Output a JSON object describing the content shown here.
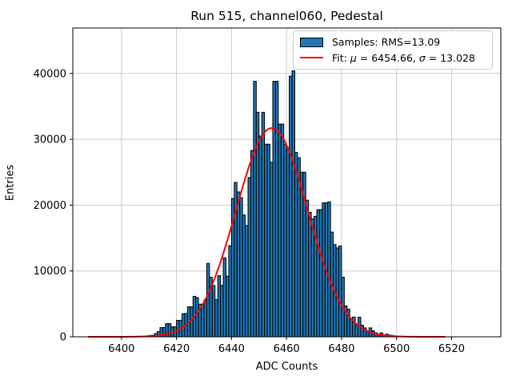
{
  "chart_data": {
    "type": "histogram",
    "title": "Run 515, channel060, Pedestal",
    "xlabel": "ADC Counts",
    "ylabel": "Entries",
    "xlim": [
      6382.3,
      6537.9
    ],
    "ylim": [
      0,
      46900
    ],
    "x_ticks": [
      6400,
      6420,
      6440,
      6460,
      6480,
      6500,
      6520
    ],
    "y_ticks": [
      0,
      10000,
      20000,
      30000,
      40000
    ],
    "grid": true,
    "colors": {
      "bar_fill": "#1f77b4",
      "bar_edge": "#000000",
      "fit_line": "#ff0000",
      "grid_line": "#cccccc",
      "spine": "#000000"
    },
    "bins_start": 6409,
    "bin_width": 1,
    "bin_values": [
      150,
      200,
      250,
      500,
      800,
      1400,
      1400,
      2000,
      2000,
      1500,
      1500,
      2500,
      2500,
      3500,
      3550,
      4550,
      4550,
      6150,
      5950,
      4950,
      4950,
      5600,
      11150,
      9050,
      7800,
      5650,
      9300,
      7800,
      12000,
      9200,
      13850,
      21000,
      23450,
      22000,
      21150,
      18500,
      16900,
      24200,
      28300,
      38800,
      34100,
      30500,
      34100,
      29250,
      29250,
      26500,
      38800,
      38800,
      32300,
      32300,
      29250,
      28450,
      39600,
      40400,
      28000,
      27200,
      25000,
      25000,
      20750,
      18900,
      17900,
      18300,
      19300,
      19300,
      20350,
      20350,
      20500,
      15900,
      14000,
      13500,
      13800,
      9050,
      4700,
      4200,
      2800,
      3000,
      1750,
      2980,
      1750,
      1350,
      900,
      1350,
      900,
      600,
      400,
      600,
      250,
      400,
      250,
      200,
      100,
      100,
      60
    ],
    "fit": {
      "mu": 6454.66,
      "sigma": 13.028,
      "amplitude": 31700,
      "draw_range": [
        6388.0,
        6517.5
      ]
    },
    "legend": {
      "position": "upper right",
      "samples_label": "Samples: RMS=13.09",
      "fit_label_parts": [
        "Fit: ",
        "μ",
        " = 6454.66, ",
        "σ",
        " = 13.028"
      ]
    }
  }
}
